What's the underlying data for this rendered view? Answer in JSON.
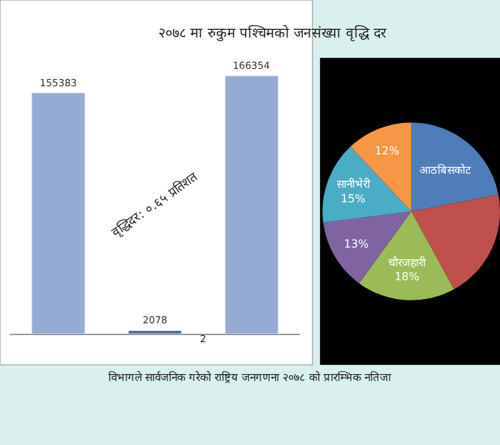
{
  "chart_data": [
    {
      "type": "bar",
      "title": "२०७८ मा रुकुम पश्चिमको जनसंख्या वृद्धि दर",
      "categories": [
        null,
        null,
        null
      ],
      "values": [
        155383,
        2078,
        166354
      ],
      "colors": [
        "#95abd4",
        "#4a6a9c",
        "#95abd4"
      ],
      "data_labels": true,
      "annotations": [
        "वृद्धिदर: ०.६५ प्रतिशत",
        "2",
        "विभागले सार्वजनिक गरेको राष्ट्रिय जनगणना २०७८ को प्रारम्भिक नतिजा"
      ]
    },
    {
      "type": "pie",
      "categories": [
        "आठबिसकोट",
        null,
        "चौरजहारी",
        null,
        "सानीभेरी",
        null
      ],
      "values": [
        22,
        20,
        18,
        13,
        15,
        12
      ],
      "value_labels": [
        null,
        null,
        "18%",
        "13%",
        "15%",
        "12%"
      ],
      "colors": [
        "#4f7dba",
        "#c0504d",
        "#9bbb59",
        "#8064a2",
        "#4bacc6",
        "#f79646"
      ]
    }
  ]
}
